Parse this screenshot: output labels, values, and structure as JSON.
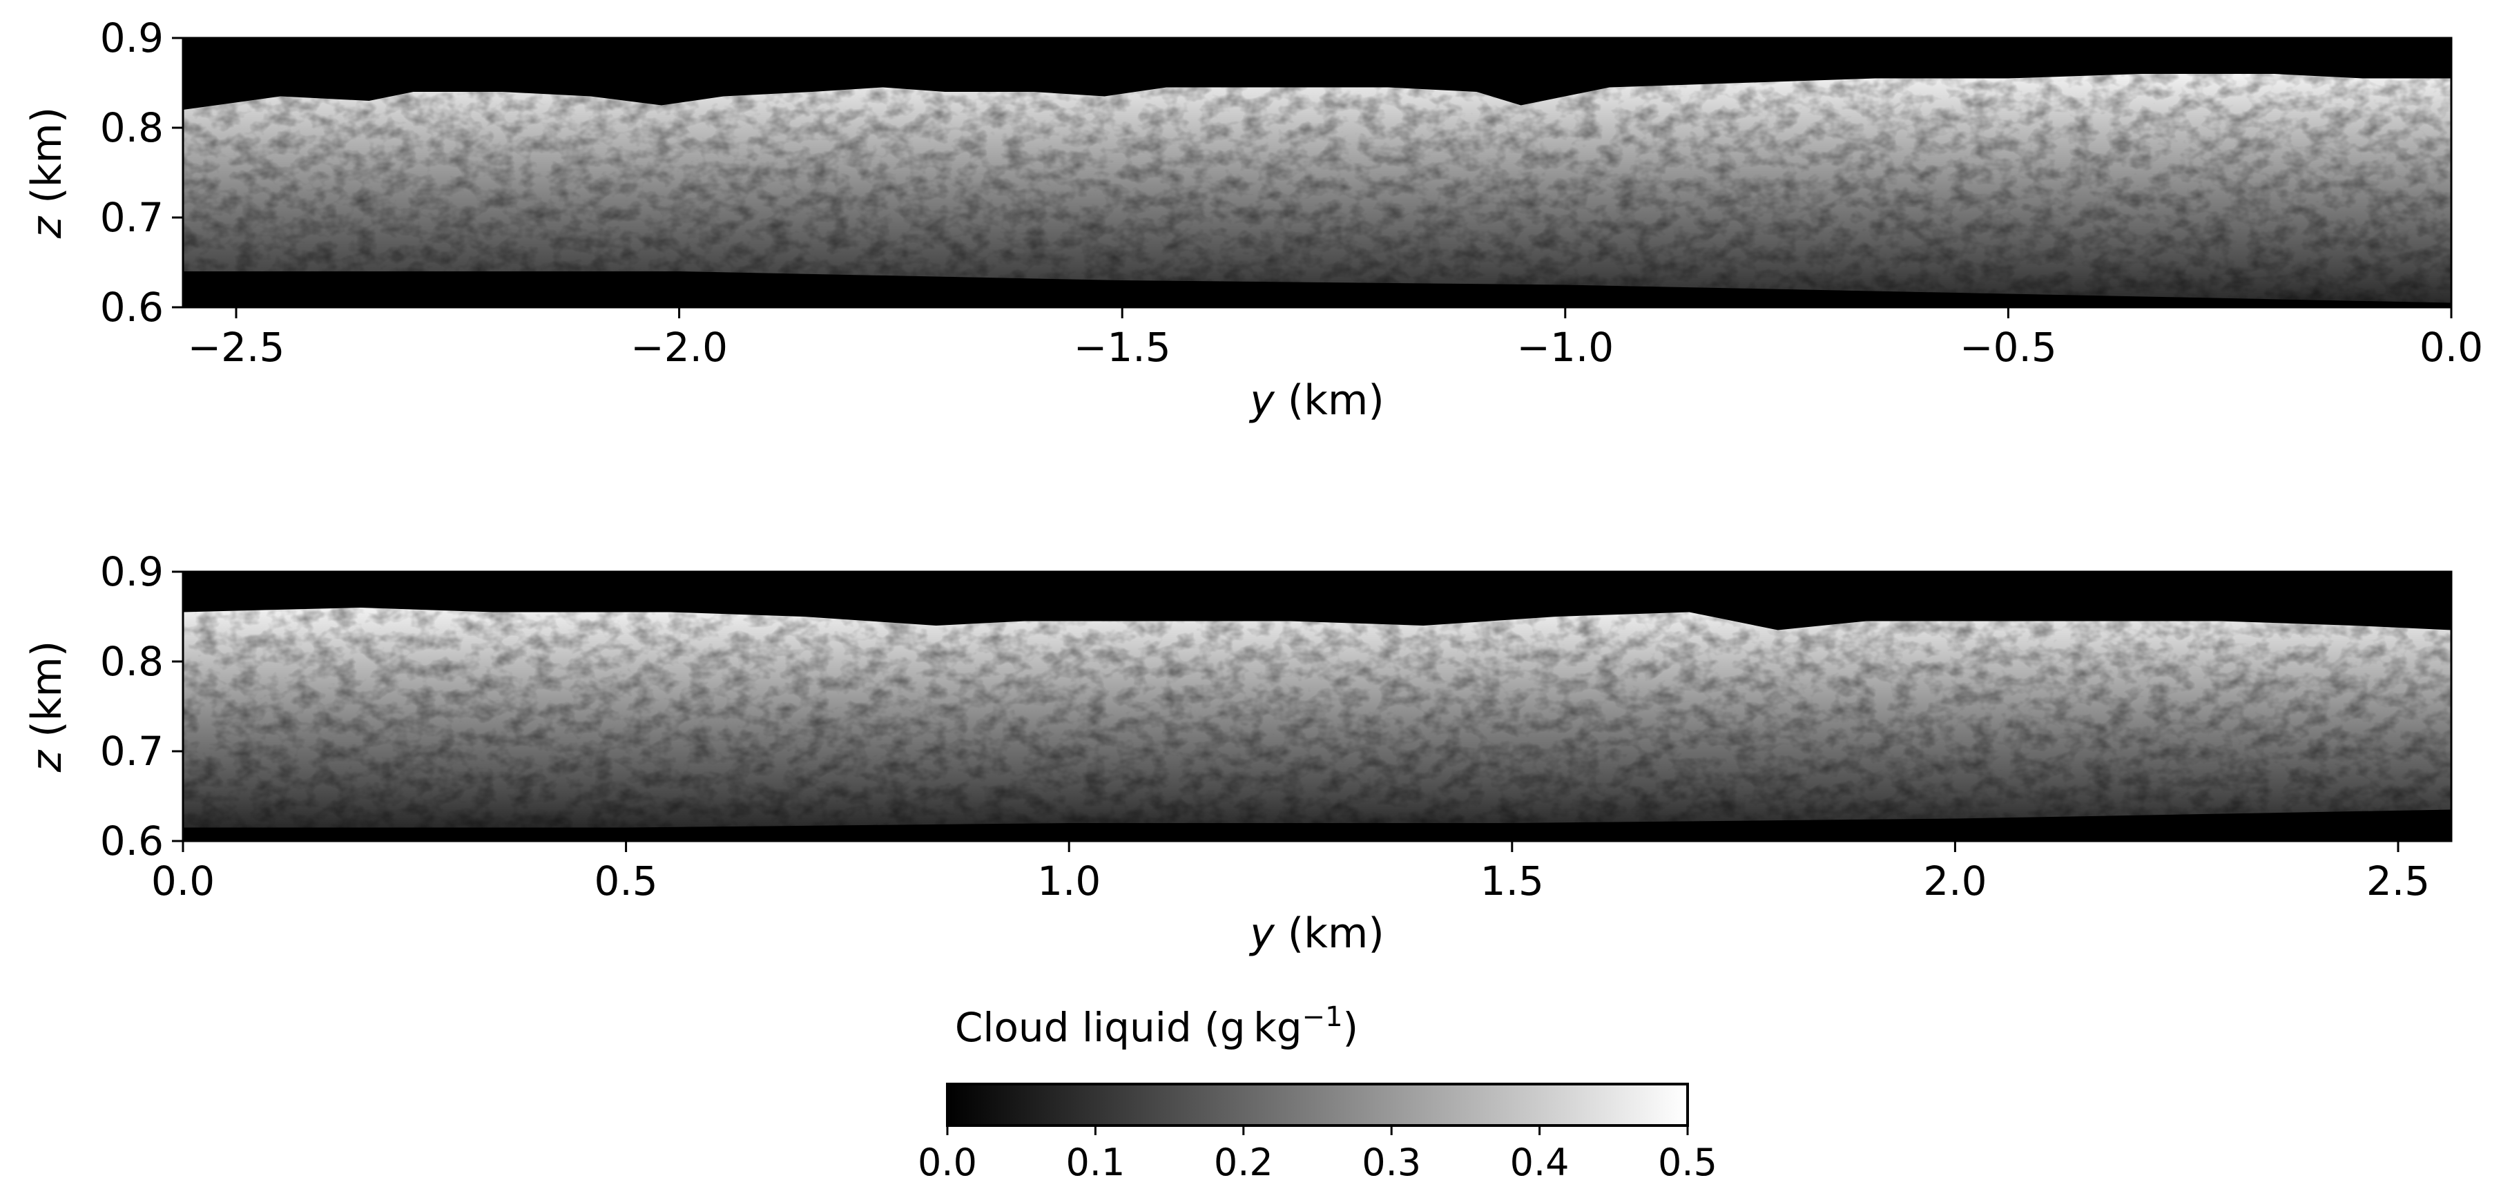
{
  "chart_data": [
    {
      "type": "heatmap",
      "panel": "top",
      "xlabel_var": "y",
      "xlabel_unit": " (km)",
      "ylabel_var": "z",
      "ylabel_unit": " (km)",
      "xlim": [
        -2.56,
        0.0
      ],
      "ylim": [
        0.6,
        0.9
      ],
      "xticks": [
        -2.5,
        -2.0,
        -1.5,
        -1.0,
        -0.5,
        0.0
      ],
      "xtick_labels": [
        "−2.5",
        "−2.0",
        "−1.5",
        "−1.0",
        "−0.5",
        "0.0"
      ],
      "yticks": [
        0.6,
        0.7,
        0.8,
        0.9
      ],
      "ytick_labels": [
        "0.6",
        "0.7",
        "0.8",
        "0.9"
      ],
      "cloud_top_profile": {
        "y": [
          -2.56,
          -2.45,
          -2.35,
          -2.3,
          -2.2,
          -2.1,
          -2.02,
          -1.95,
          -1.85,
          -1.77,
          -1.7,
          -1.6,
          -1.52,
          -1.45,
          -1.3,
          -1.2,
          -1.1,
          -1.05,
          -0.95,
          -0.8,
          -0.65,
          -0.5,
          -0.35,
          -0.2,
          -0.1,
          0.0
        ],
        "z_top": [
          0.82,
          0.835,
          0.83,
          0.84,
          0.84,
          0.835,
          0.825,
          0.835,
          0.84,
          0.845,
          0.84,
          0.84,
          0.835,
          0.845,
          0.845,
          0.845,
          0.84,
          0.825,
          0.845,
          0.85,
          0.855,
          0.855,
          0.86,
          0.86,
          0.855,
          0.855
        ]
      },
      "cloud_base_profile": {
        "y": [
          -2.56,
          -2.0,
          -1.5,
          -1.0,
          -0.5,
          0.0
        ],
        "z_base": [
          0.64,
          0.64,
          0.63,
          0.625,
          0.615,
          0.605
        ]
      }
    },
    {
      "type": "heatmap",
      "panel": "bottom",
      "xlabel_var": "y",
      "xlabel_unit": " (km)",
      "ylabel_var": "z",
      "ylabel_unit": " (km)",
      "xlim": [
        0.0,
        2.56
      ],
      "ylim": [
        0.6,
        0.9
      ],
      "xticks": [
        0.0,
        0.5,
        1.0,
        1.5,
        2.0,
        2.5
      ],
      "xtick_labels": [
        "0.0",
        "0.5",
        "1.0",
        "1.5",
        "2.0",
        "2.5"
      ],
      "yticks": [
        0.6,
        0.7,
        0.8,
        0.9
      ],
      "ytick_labels": [
        "0.6",
        "0.7",
        "0.8",
        "0.9"
      ],
      "cloud_top_profile": {
        "y": [
          0.0,
          0.2,
          0.35,
          0.55,
          0.7,
          0.85,
          0.95,
          1.1,
          1.25,
          1.4,
          1.55,
          1.7,
          1.8,
          1.9,
          2.1,
          2.3,
          2.45,
          2.56
        ],
        "z_top": [
          0.855,
          0.86,
          0.855,
          0.855,
          0.85,
          0.84,
          0.845,
          0.845,
          0.845,
          0.84,
          0.85,
          0.855,
          0.835,
          0.845,
          0.845,
          0.845,
          0.84,
          0.835
        ]
      },
      "cloud_base_profile": {
        "y": [
          0.0,
          0.5,
          1.0,
          1.5,
          2.0,
          2.56
        ],
        "z_base": [
          0.615,
          0.615,
          0.62,
          0.62,
          0.625,
          0.635
        ]
      }
    }
  ],
  "colorbar": {
    "title_main": "Cloud liquid (g kg",
    "title_sup": "−1",
    "title_close": ")",
    "colormap": "gray",
    "range": [
      0.0,
      0.5
    ],
    "ticks": [
      0.0,
      0.1,
      0.2,
      0.3,
      0.4,
      0.5
    ],
    "tick_labels": [
      "0.0",
      "0.1",
      "0.2",
      "0.3",
      "0.4",
      "0.5"
    ]
  }
}
